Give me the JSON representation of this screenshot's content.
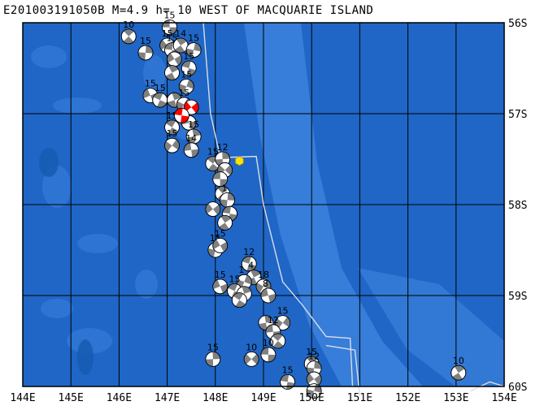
{
  "title": "E201003191050B M=4.9 h= 10 WEST OF MACQUARIE ISLAND",
  "colors": {
    "ocean": "#1f66c6",
    "shallow": "#3a80dc",
    "deep": "#155ab0",
    "grid": "#000000",
    "ridge": "#d8dde6",
    "event": "#ff0000",
    "marker": "#ffe400"
  },
  "axes": {
    "lon_ticks": [
      "144E",
      "145E",
      "146E",
      "147E",
      "148E",
      "149E",
      "150E",
      "151E",
      "152E",
      "153E",
      "154E"
    ],
    "lat_ticks": [
      "56S",
      "57S",
      "58S",
      "59S",
      "60S"
    ]
  },
  "marker": {
    "name": "hexagon-marker",
    "lon": 148.5,
    "lat": 57.52
  },
  "beachballs": [
    {
      "lon": 147.05,
      "lat": 56.05,
      "label": "15"
    },
    {
      "lon": 146.2,
      "lat": 56.15,
      "label": "10"
    },
    {
      "lon": 146.55,
      "lat": 56.33,
      "label": "15"
    },
    {
      "lon": 147.0,
      "lat": 56.25,
      "label": "15"
    },
    {
      "lon": 147.1,
      "lat": 56.3,
      "label": "15"
    },
    {
      "lon": 147.28,
      "lat": 56.25,
      "label": "14"
    },
    {
      "lon": 147.55,
      "lat": 56.3,
      "label": "15"
    },
    {
      "lon": 147.15,
      "lat": 56.4,
      "label": ""
    },
    {
      "lon": 147.45,
      "lat": 56.5,
      "label": "15"
    },
    {
      "lon": 147.1,
      "lat": 56.55,
      "label": ""
    },
    {
      "lon": 147.4,
      "lat": 56.7,
      "label": "15"
    },
    {
      "lon": 146.65,
      "lat": 56.8,
      "label": "15"
    },
    {
      "lon": 146.85,
      "lat": 56.85,
      "label": "15"
    },
    {
      "lon": 147.15,
      "lat": 56.85,
      "label": ""
    },
    {
      "lon": 147.35,
      "lat": 56.9,
      "label": "15"
    },
    {
      "lon": 147.45,
      "lat": 57.1,
      "label": ""
    },
    {
      "lon": 147.1,
      "lat": 57.15,
      "label": "15"
    },
    {
      "lon": 147.55,
      "lat": 57.25,
      "label": "15"
    },
    {
      "lon": 147.1,
      "lat": 57.35,
      "label": "15"
    },
    {
      "lon": 147.5,
      "lat": 57.4,
      "label": "14"
    },
    {
      "lon": 147.95,
      "lat": 57.55,
      "label": "15"
    },
    {
      "lon": 148.15,
      "lat": 57.5,
      "label": "12"
    },
    {
      "lon": 148.2,
      "lat": 57.62,
      "label": ""
    },
    {
      "lon": 148.1,
      "lat": 57.72,
      "label": ""
    },
    {
      "lon": 148.15,
      "lat": 57.88,
      "label": ""
    },
    {
      "lon": 148.25,
      "lat": 57.95,
      "label": "1"
    },
    {
      "lon": 147.95,
      "lat": 58.05,
      "label": ""
    },
    {
      "lon": 148.3,
      "lat": 58.1,
      "label": ""
    },
    {
      "lon": 148.2,
      "lat": 58.2,
      "label": ""
    },
    {
      "lon": 148.0,
      "lat": 58.5,
      "label": "15"
    },
    {
      "lon": 148.1,
      "lat": 58.45,
      "label": "15"
    },
    {
      "lon": 148.7,
      "lat": 58.65,
      "label": "12"
    },
    {
      "lon": 148.8,
      "lat": 58.8,
      "label": "4"
    },
    {
      "lon": 148.6,
      "lat": 58.85,
      "label": "1"
    },
    {
      "lon": 148.1,
      "lat": 58.9,
      "label": "15"
    },
    {
      "lon": 148.4,
      "lat": 58.95,
      "label": "15"
    },
    {
      "lon": 148.6,
      "lat": 58.98,
      "label": ""
    },
    {
      "lon": 149.0,
      "lat": 58.9,
      "label": "18"
    },
    {
      "lon": 149.1,
      "lat": 59.0,
      "label": "8"
    },
    {
      "lon": 148.5,
      "lat": 59.05,
      "label": ""
    },
    {
      "lon": 149.05,
      "lat": 59.3,
      "label": ""
    },
    {
      "lon": 149.4,
      "lat": 59.3,
      "label": "15"
    },
    {
      "lon": 149.2,
      "lat": 59.4,
      "label": "12"
    },
    {
      "lon": 149.3,
      "lat": 59.5,
      "label": ""
    },
    {
      "lon": 147.95,
      "lat": 59.7,
      "label": "15"
    },
    {
      "lon": 148.75,
      "lat": 59.7,
      "label": "10"
    },
    {
      "lon": 149.1,
      "lat": 59.65,
      "label": "10"
    },
    {
      "lon": 150.0,
      "lat": 59.75,
      "label": "15"
    },
    {
      "lon": 150.05,
      "lat": 59.8,
      "label": "12"
    },
    {
      "lon": 150.05,
      "lat": 59.92,
      "label": ""
    },
    {
      "lon": 149.5,
      "lat": 59.95,
      "label": "15"
    },
    {
      "lon": 153.05,
      "lat": 59.85,
      "label": "10"
    },
    {
      "lon": 150.05,
      "lat": 60.05,
      "label": ""
    }
  ],
  "events": [
    {
      "lon": 147.5,
      "lat": 56.93,
      "label": ""
    },
    {
      "lon": 147.3,
      "lat": 57.02,
      "label": ""
    }
  ],
  "ridge_lines": [
    [
      [
        147.75,
        56.0
      ],
      [
        147.9,
        57.0
      ],
      [
        148.1,
        57.48
      ],
      [
        148.3,
        57.48
      ],
      [
        148.85,
        57.47
      ],
      [
        149.0,
        58.0
      ],
      [
        149.4,
        58.85
      ],
      [
        149.8,
        59.1
      ],
      [
        150.3,
        59.45
      ],
      [
        150.8,
        59.47
      ],
      [
        150.85,
        60.0
      ]
    ],
    [
      [
        150.3,
        59.55
      ],
      [
        150.9,
        59.6
      ],
      [
        151.0,
        60.1
      ]
    ],
    [
      [
        153.3,
        60.05
      ],
      [
        153.7,
        59.95
      ],
      [
        154.0,
        60.0
      ]
    ]
  ]
}
